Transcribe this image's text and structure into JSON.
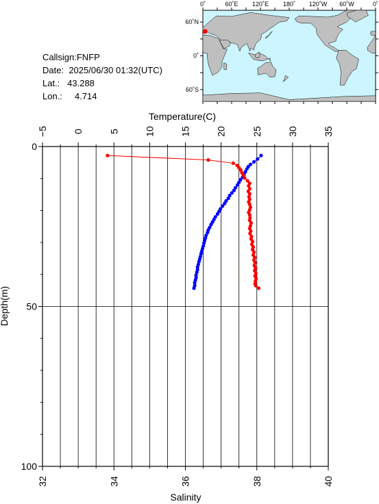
{
  "station": {
    "callsign_label": "Callsign:",
    "callsign": "FNFP",
    "date_label": "Date:",
    "date": "2025/06/30 01:32(UTC)",
    "lat_label": "Lat.:",
    "lat": "43.288",
    "lon_label": "Lon.:",
    "lon": "4.714"
  },
  "map": {
    "lon_ticks": [
      "0˚",
      "60˚E",
      "120˚E",
      "180˚",
      "120˚W",
      "60˚W",
      "0˚"
    ],
    "lat_ticks": [
      "60˚N",
      "0˚",
      "60˚S"
    ],
    "ocean_color": "#ccf5ff",
    "land_color": "#bfbfbf",
    "marker_color": "#ff0000",
    "marker": {
      "lon": 4.714,
      "lat": 43.288
    }
  },
  "chart_data": {
    "type": "line",
    "top_axis": {
      "label": "Temperature(C)",
      "range": [
        -5,
        35
      ],
      "ticks": [
        "−5",
        "0",
        "5",
        "10",
        "15",
        "20",
        "25",
        "30",
        "35"
      ]
    },
    "bottom_axis": {
      "label": "Salinity",
      "range": [
        32,
        40
      ],
      "ticks": [
        "32",
        "34",
        "36",
        "38",
        "40"
      ]
    },
    "y_axis": {
      "label": "Depth(m)",
      "range": [
        0,
        100
      ],
      "inverted": true,
      "ticks": [
        "0",
        "50",
        "100"
      ]
    },
    "grid": true,
    "series": [
      {
        "color": "#0000ff",
        "axis": "top",
        "points": [
          [
            25.6,
            2.8
          ],
          [
            25.1,
            3.9
          ],
          [
            24.6,
            4.8
          ],
          [
            24.1,
            5.6
          ],
          [
            23.8,
            6.3
          ],
          [
            23.6,
            7.0
          ],
          [
            23.4,
            7.9
          ],
          [
            23.2,
            8.8
          ],
          [
            23.0,
            9.6
          ],
          [
            22.7,
            10.4
          ],
          [
            22.5,
            11.2
          ],
          [
            22.3,
            12.0
          ],
          [
            22.0,
            12.9
          ],
          [
            21.8,
            13.7
          ],
          [
            21.5,
            14.5
          ],
          [
            21.2,
            15.3
          ],
          [
            21.0,
            16.2
          ],
          [
            20.7,
            17.0
          ],
          [
            20.5,
            17.8
          ],
          [
            20.2,
            18.6
          ],
          [
            19.9,
            19.5
          ],
          [
            19.7,
            20.3
          ],
          [
            19.5,
            21.1
          ],
          [
            19.2,
            22.0
          ],
          [
            19.0,
            22.8
          ],
          [
            18.8,
            23.6
          ],
          [
            18.6,
            24.4
          ],
          [
            18.4,
            25.3
          ],
          [
            18.2,
            26.1
          ],
          [
            18.1,
            26.9
          ],
          [
            17.9,
            27.8
          ],
          [
            17.8,
            28.6
          ],
          [
            17.7,
            29.4
          ],
          [
            17.6,
            30.2
          ],
          [
            17.5,
            31.1
          ],
          [
            17.4,
            31.9
          ],
          [
            17.3,
            32.7
          ],
          [
            17.2,
            33.5
          ],
          [
            17.1,
            34.4
          ],
          [
            17.0,
            35.2
          ],
          [
            16.9,
            36.0
          ],
          [
            16.8,
            36.9
          ],
          [
            16.7,
            37.7
          ],
          [
            16.7,
            38.5
          ],
          [
            16.6,
            39.3
          ],
          [
            16.5,
            40.2
          ],
          [
            16.5,
            41.0
          ],
          [
            16.4,
            41.8
          ],
          [
            16.3,
            42.6
          ],
          [
            16.3,
            43.5
          ],
          [
            16.2,
            44.3
          ]
        ]
      },
      {
        "color": "#ff0000",
        "axis": "bottom",
        "points": [
          [
            33.82,
            2.8
          ],
          [
            36.64,
            4.2
          ],
          [
            37.34,
            5.2
          ],
          [
            37.45,
            5.9
          ],
          [
            37.5,
            6.6
          ],
          [
            37.55,
            7.3
          ],
          [
            37.58,
            8.2
          ],
          [
            37.62,
            9.0
          ],
          [
            37.66,
            9.8
          ],
          [
            37.74,
            10.7
          ],
          [
            37.8,
            11.5
          ],
          [
            37.77,
            12.3
          ],
          [
            37.8,
            13.2
          ],
          [
            37.76,
            14.0
          ],
          [
            37.8,
            14.8
          ],
          [
            37.78,
            15.7
          ],
          [
            37.8,
            16.5
          ],
          [
            37.77,
            17.3
          ],
          [
            37.8,
            18.1
          ],
          [
            37.82,
            19.0
          ],
          [
            37.8,
            19.8
          ],
          [
            37.77,
            20.6
          ],
          [
            37.8,
            21.4
          ],
          [
            37.81,
            22.3
          ],
          [
            37.8,
            23.1
          ],
          [
            37.84,
            23.9
          ],
          [
            37.82,
            24.8
          ],
          [
            37.8,
            25.6
          ],
          [
            37.83,
            26.4
          ],
          [
            37.81,
            27.2
          ],
          [
            37.85,
            28.1
          ],
          [
            37.84,
            28.9
          ],
          [
            37.88,
            29.7
          ],
          [
            37.86,
            30.6
          ],
          [
            37.9,
            31.4
          ],
          [
            37.88,
            32.2
          ],
          [
            37.92,
            33.0
          ],
          [
            37.9,
            33.9
          ],
          [
            37.94,
            34.7
          ],
          [
            37.92,
            35.5
          ],
          [
            37.95,
            36.3
          ],
          [
            37.93,
            37.2
          ],
          [
            37.96,
            38.0
          ],
          [
            37.94,
            38.8
          ],
          [
            37.97,
            39.7
          ],
          [
            37.95,
            40.5
          ],
          [
            37.98,
            41.3
          ],
          [
            37.96,
            42.1
          ],
          [
            37.95,
            43.0
          ],
          [
            37.97,
            43.5
          ],
          [
            38.05,
            44.3
          ]
        ]
      }
    ]
  }
}
